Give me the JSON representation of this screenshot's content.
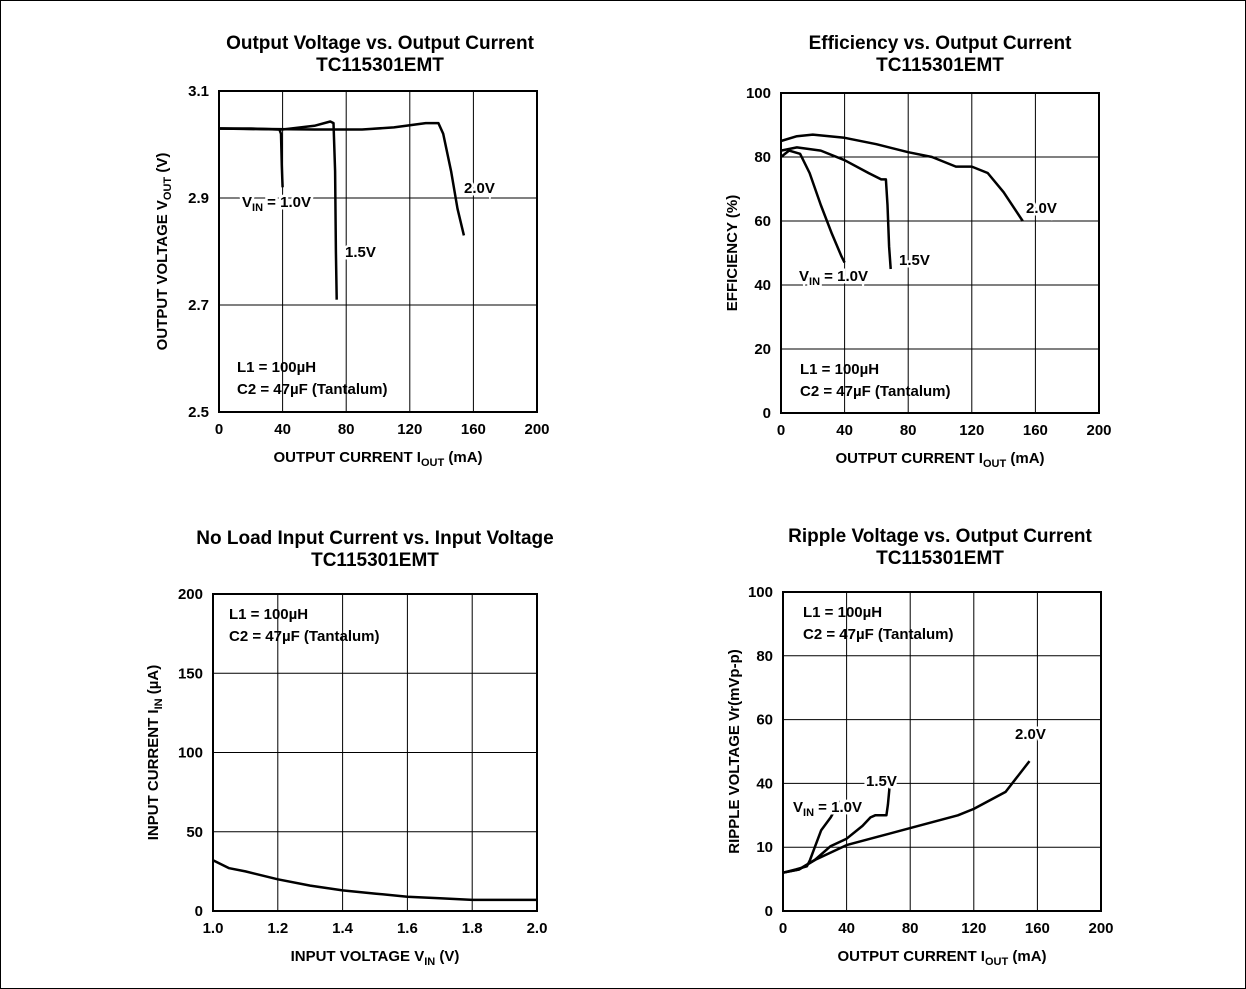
{
  "chart_data": [
    {
      "type": "line",
      "title": "Output Voltage vs. Output Current",
      "subtitle": "TC115301EMT",
      "xlabel": {
        "main": "OUTPUT CURRENT I",
        "sub": "OUT",
        "suffix": " (mA)"
      },
      "ylabel": {
        "main": "OUTPUT VOLTAGE  V",
        "sub": "OUT",
        "suffix": " (V)"
      },
      "xlim": [
        0,
        200
      ],
      "ylim": [
        2.5,
        3.1
      ],
      "xticks": [
        0,
        40,
        80,
        120,
        160,
        200
      ],
      "xtick_labels": [
        "0",
        "40",
        "80",
        "120",
        "160",
        "200"
      ],
      "yticks": [
        2.5,
        2.7,
        2.9,
        3.1
      ],
      "ytick_labels": [
        "2.5",
        "2.7",
        "2.9",
        "3.1"
      ],
      "grid": true,
      "notes": [
        "L1 = 100µH",
        "C2 = 47µF (Tantalum)"
      ],
      "series": [
        {
          "label": {
            "main": "V",
            "sub": "IN",
            "suffix": " = 1.0V"
          },
          "x": [
            0,
            20,
            38,
            39,
            39.5,
            40
          ],
          "y": [
            3.03,
            3.03,
            3.028,
            3.02,
            2.96,
            2.92
          ]
        },
        {
          "label": {
            "main": "1.5V",
            "sub": "",
            "suffix": ""
          },
          "x": [
            0,
            40,
            60,
            70,
            72,
            73,
            73.5,
            74
          ],
          "y": [
            3.03,
            3.028,
            3.035,
            3.043,
            3.04,
            2.95,
            2.8,
            2.71
          ]
        },
        {
          "label": {
            "main": "2.0V",
            "sub": "",
            "suffix": ""
          },
          "x": [
            0,
            60,
            90,
            110,
            130,
            138,
            141,
            146,
            150,
            154
          ],
          "y": [
            3.03,
            3.028,
            3.028,
            3.032,
            3.04,
            3.04,
            3.02,
            2.95,
            2.88,
            2.83
          ]
        }
      ]
    },
    {
      "type": "line",
      "title": "Efficiency vs. Output Current",
      "subtitle": "TC115301EMT",
      "xlabel": {
        "main": "OUTPUT CURRENT I",
        "sub": "OUT",
        "suffix": " (mA)"
      },
      "ylabel": {
        "main": "EFFICIENCY (%)",
        "sub": "",
        "suffix": ""
      },
      "xlim": [
        0,
        200
      ],
      "ylim": [
        0,
        100
      ],
      "xticks": [
        0,
        40,
        80,
        120,
        160,
        200
      ],
      "xtick_labels": [
        "0",
        "40",
        "80",
        "120",
        "160",
        "200"
      ],
      "yticks": [
        0,
        20,
        40,
        60,
        80,
        100
      ],
      "ytick_labels": [
        "0",
        "20",
        "40",
        "60",
        "80",
        "100"
      ],
      "grid": true,
      "notes": [
        "L1 = 100µH",
        "C2 = 47µF (Tantalum)"
      ],
      "series": [
        {
          "label": {
            "main": "V",
            "sub": "IN",
            "suffix": " = 1.0V"
          },
          "x": [
            0,
            5,
            12,
            18,
            25,
            32,
            38,
            40
          ],
          "y": [
            80,
            82,
            81,
            75,
            65,
            56,
            49,
            47
          ]
        },
        {
          "label": {
            "main": "1.5V",
            "sub": "",
            "suffix": ""
          },
          "x": [
            0,
            10,
            25,
            40,
            55,
            63,
            66,
            67,
            68,
            69
          ],
          "y": [
            82,
            83,
            82,
            79,
            75,
            73,
            73,
            65,
            52,
            45
          ]
        },
        {
          "label": {
            "main": "2.0V",
            "sub": "",
            "suffix": ""
          },
          "x": [
            0,
            10,
            20,
            40,
            60,
            80,
            95,
            110,
            120,
            130,
            140,
            152
          ],
          "y": [
            85,
            86.5,
            87,
            86,
            84,
            81.5,
            80,
            77,
            77,
            75,
            69,
            60
          ]
        }
      ]
    },
    {
      "type": "line",
      "title": "No Load Input Current vs. Input Voltage",
      "subtitle": "TC115301EMT",
      "xlabel": {
        "main": "INPUT VOLTAGE V",
        "sub": "IN",
        "suffix": " (V)"
      },
      "ylabel": {
        "main": "INPUT CURRENT I",
        "sub": "IN",
        "suffix": " (µA)"
      },
      "xlim": [
        1.0,
        2.0
      ],
      "ylim": [
        0,
        200
      ],
      "xticks": [
        1.0,
        1.2,
        1.4,
        1.6,
        1.8,
        2.0
      ],
      "xtick_labels": [
        "1.0",
        "1.2",
        "1.4",
        "1.6",
        "1.8",
        "2.0"
      ],
      "yticks": [
        0,
        50,
        100,
        150,
        200
      ],
      "ytick_labels": [
        "0",
        "50",
        "100",
        "150",
        "200"
      ],
      "grid": true,
      "notes": [
        "L1 = 100µH",
        "C2 = 47µF (Tantalum)"
      ],
      "series": [
        {
          "x": [
            1.0,
            1.05,
            1.1,
            1.2,
            1.3,
            1.4,
            1.5,
            1.6,
            1.7,
            1.8,
            1.9,
            2.0
          ],
          "y": [
            32,
            27,
            25,
            20,
            16,
            13,
            11,
            9,
            8,
            7,
            7,
            7
          ]
        }
      ]
    },
    {
      "type": "line",
      "title": "Ripple Voltage vs. Output Current",
      "subtitle": "TC115301EMT",
      "xlabel": {
        "main": "OUTPUT CURRENT I",
        "sub": "OUT",
        "suffix": " (mA)"
      },
      "ylabel": {
        "main": "RIPPLE VOLTAGE Vr(mVp-p)",
        "sub": "",
        "suffix": ""
      },
      "xlim": [
        0,
        200
      ],
      "ylim": [
        0,
        100
      ],
      "xticks": [
        0,
        40,
        80,
        120,
        160,
        200
      ],
      "xtick_labels": [
        "0",
        "40",
        "80",
        "120",
        "160",
        "200"
      ],
      "yticks": [
        0,
        10,
        40,
        60,
        80,
        100
      ],
      "ytick_labels": [
        "0",
        "10",
        "40",
        "60",
        "80",
        "100"
      ],
      "grid": true,
      "notes": [
        "L1 = 100µH",
        "C2 = 47µF (Tantalum)"
      ],
      "series": [
        {
          "label": {
            "main": "V",
            "sub": "IN",
            "suffix": " = 1.0V"
          },
          "x": [
            0,
            8,
            15,
            17,
            20,
            24,
            30,
            33,
            35
          ],
          "y": [
            6,
            6.5,
            7,
            8,
            10,
            18,
            24,
            28,
            32
          ]
        },
        {
          "label": {
            "main": "1.5V",
            "sub": "",
            "suffix": ""
          },
          "x": [
            0,
            10,
            20,
            30,
            40,
            50,
            55,
            58,
            65,
            66,
            67
          ],
          "y": [
            6,
            6.5,
            8,
            10.5,
            14,
            20,
            24,
            25,
            25,
            30,
            38
          ]
        },
        {
          "label": {
            "main": "2.0V",
            "sub": "",
            "suffix": ""
          },
          "x": [
            0,
            10,
            20,
            40,
            60,
            80,
            100,
            110,
            120,
            140,
            155
          ],
          "y": [
            6,
            6.5,
            8,
            11,
            15,
            19,
            23,
            25,
            28,
            36,
            47
          ]
        }
      ]
    }
  ]
}
